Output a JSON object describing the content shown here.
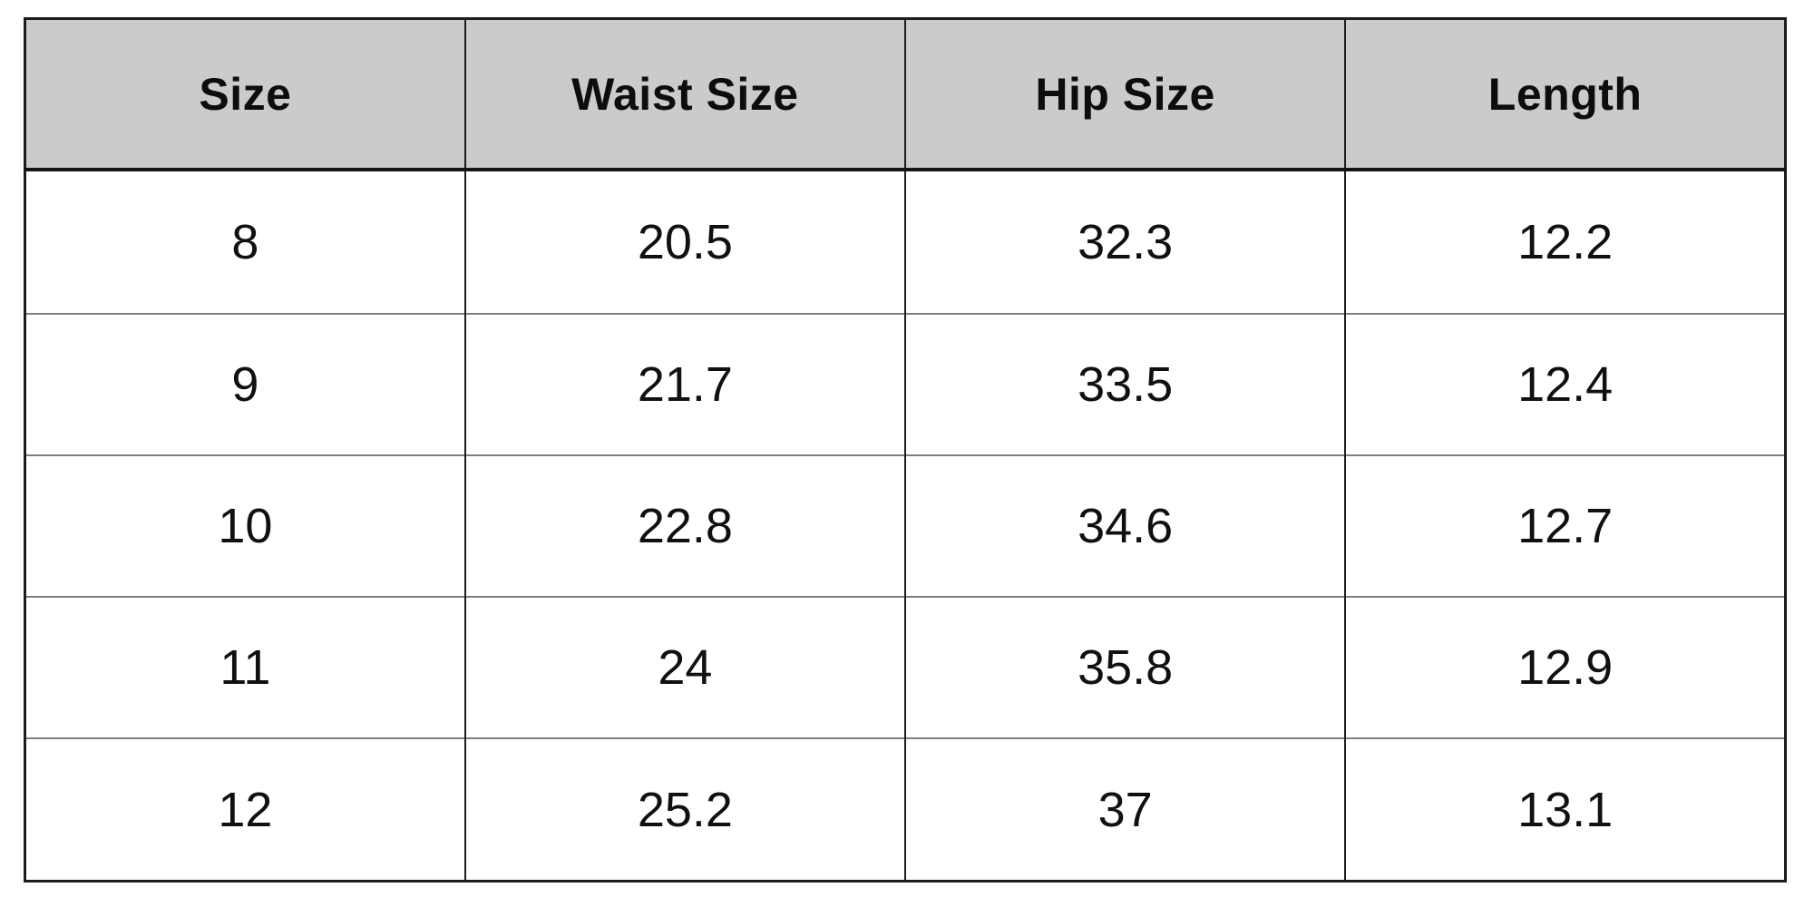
{
  "table": {
    "columns": [
      "Size",
      "Waist Size",
      "Hip Size",
      "Length"
    ],
    "rows": [
      [
        "8",
        "20.5",
        "32.3",
        "12.2"
      ],
      [
        "9",
        "21.7",
        "33.5",
        "12.4"
      ],
      [
        "10",
        "22.8",
        "34.6",
        "12.7"
      ],
      [
        "11",
        "24",
        "35.8",
        "12.9"
      ],
      [
        "12",
        "25.2",
        "37",
        "13.1"
      ]
    ]
  },
  "chart_data": {
    "type": "table",
    "title": "",
    "columns": [
      "Size",
      "Waist Size",
      "Hip Size",
      "Length"
    ],
    "rows": [
      [
        8,
        20.5,
        32.3,
        12.2
      ],
      [
        9,
        21.7,
        33.5,
        12.4
      ],
      [
        10,
        22.8,
        34.6,
        12.7
      ],
      [
        11,
        24,
        35.8,
        12.9
      ],
      [
        12,
        25.2,
        37,
        13.1
      ]
    ]
  },
  "colors": {
    "header_background": "#cbcbcb",
    "border_dark": "#1c1c1c",
    "row_divider_gray": "#7f7f7f",
    "text": "#101010",
    "page_background": "#ffffff"
  }
}
